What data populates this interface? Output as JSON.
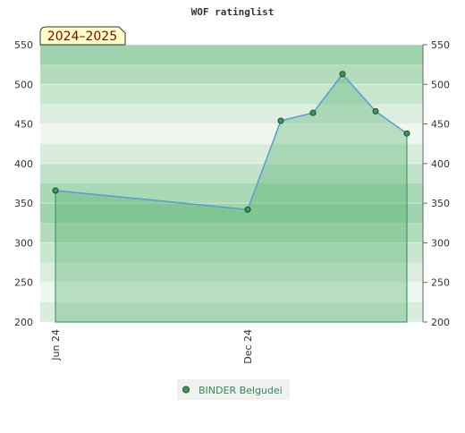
{
  "chart_data": {
    "type": "area",
    "title": "WOF ratinglist",
    "badge": "2024–2025",
    "categories": [
      "Jun 24",
      "Dec 24",
      null,
      null,
      null,
      null,
      null
    ],
    "series": [
      {
        "name": "BINDER Belgudei",
        "color": "#5b9bd5",
        "values": [
          366,
          342,
          454,
          464,
          513,
          466,
          438
        ]
      }
    ],
    "ylim": [
      200,
      550
    ],
    "yticks": [
      200,
      250,
      300,
      350,
      400,
      450,
      500,
      550
    ],
    "grid": true
  }
}
